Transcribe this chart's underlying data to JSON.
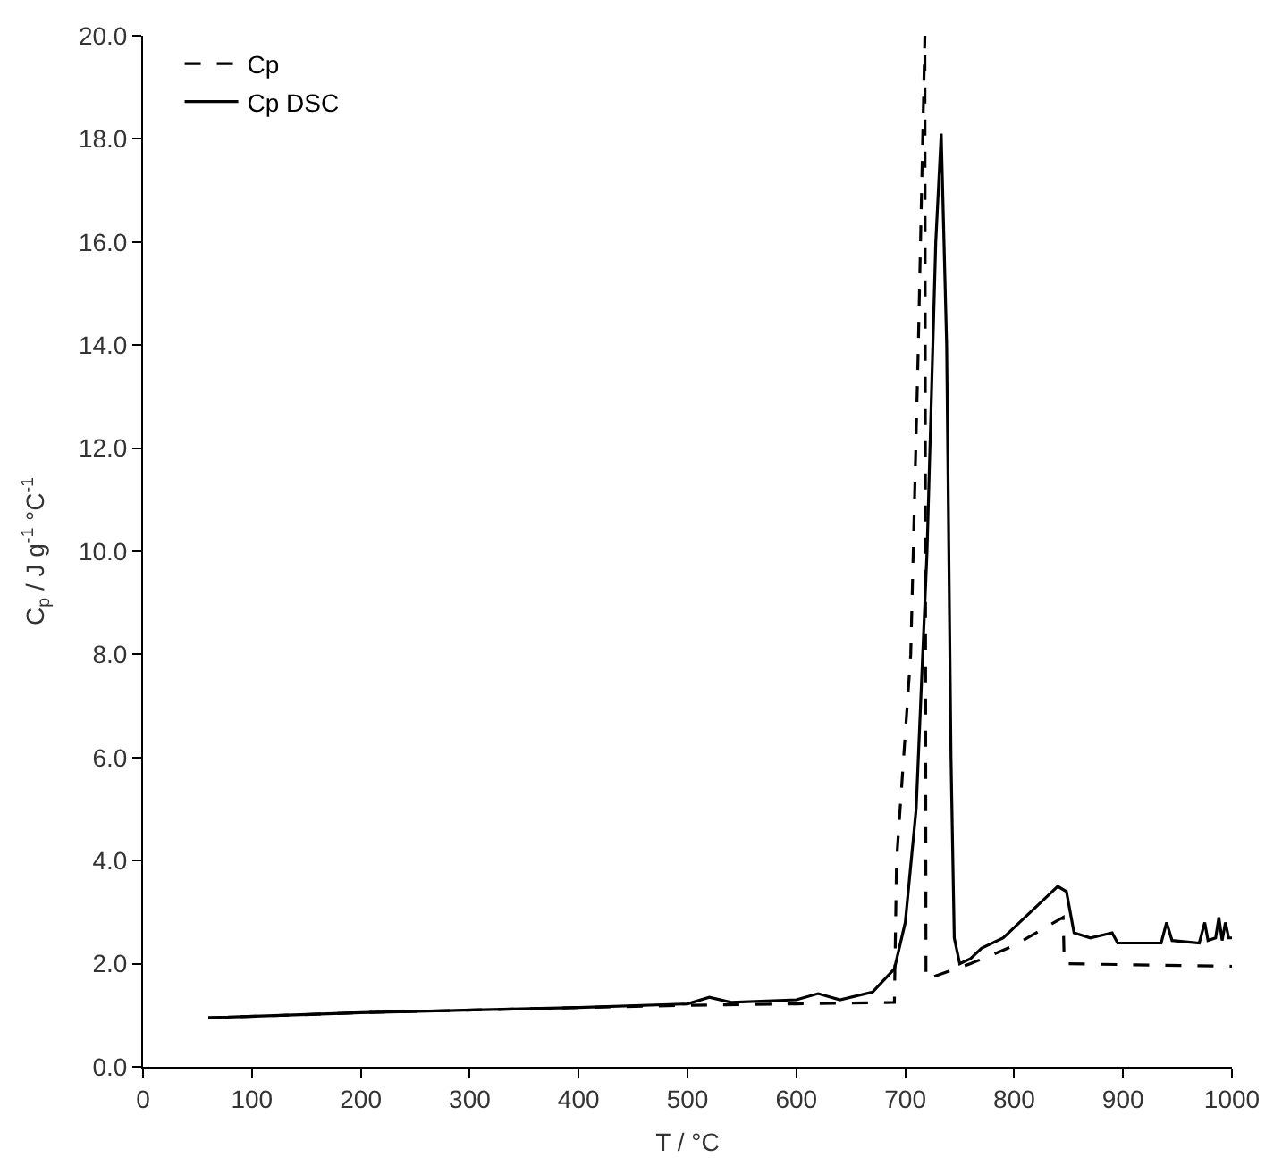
{
  "chart_data": {
    "type": "line",
    "xlabel": "T / °C",
    "ylabel": "C$_{p}$ / J g$^{-1}$ °C$^{-1}$",
    "xlim": [
      0,
      1000
    ],
    "xticks": [
      0,
      100,
      200,
      300,
      400,
      500,
      600,
      700,
      800,
      900,
      1000
    ],
    "ylim": [
      0,
      20
    ],
    "yticks": [
      {
        "value": 0,
        "label": "0.0"
      },
      {
        "value": 2,
        "label": "2.0"
      },
      {
        "value": 4,
        "label": "4.0"
      },
      {
        "value": 6,
        "label": "6.0"
      },
      {
        "value": 8,
        "label": "8.0"
      },
      {
        "value": 10,
        "label": "10.0"
      },
      {
        "value": 12,
        "label": "12.0"
      },
      {
        "value": 14,
        "label": "14.0"
      },
      {
        "value": 16,
        "label": "16.0"
      },
      {
        "value": 18,
        "label": "18.0"
      },
      {
        "value": 20,
        "label": "20.0"
      }
    ],
    "legend": "top left",
    "marker": "none",
    "series": [
      {
        "name": "Cp",
        "color": "#000000",
        "line_style": "dashed",
        "x": [
          60,
          200,
          400,
          520,
          600,
          690,
          692,
          705,
          712,
          718,
          719,
          760,
          800,
          845,
          846,
          1000
        ],
        "values": [
          0.95,
          1.05,
          1.15,
          1.2,
          1.22,
          1.25,
          4.0,
          8.0,
          14.0,
          20.0,
          1.7,
          2.0,
          2.35,
          2.9,
          2.0,
          1.95
        ]
      },
      {
        "name": "Cp DSC",
        "color": "#000000",
        "line_style": "solid",
        "x": [
          60,
          200,
          400,
          500,
          520,
          540,
          600,
          620,
          640,
          670,
          690,
          700,
          710,
          720,
          728,
          733,
          738,
          742,
          745,
          750,
          760,
          770,
          790,
          810,
          830,
          840,
          848,
          855,
          870,
          890,
          895,
          935,
          940,
          945,
          970,
          975,
          978,
          985,
          988,
          991,
          994,
          997,
          1000
        ],
        "values": [
          0.95,
          1.05,
          1.15,
          1.22,
          1.35,
          1.25,
          1.3,
          1.42,
          1.3,
          1.45,
          1.9,
          2.8,
          5.0,
          10.0,
          16.0,
          18.1,
          14.0,
          6.0,
          2.5,
          2.0,
          2.1,
          2.3,
          2.5,
          2.9,
          3.3,
          3.5,
          3.4,
          2.6,
          2.5,
          2.6,
          2.4,
          2.4,
          2.8,
          2.45,
          2.4,
          2.8,
          2.45,
          2.5,
          2.9,
          2.45,
          2.8,
          2.5,
          2.5
        ]
      }
    ]
  }
}
